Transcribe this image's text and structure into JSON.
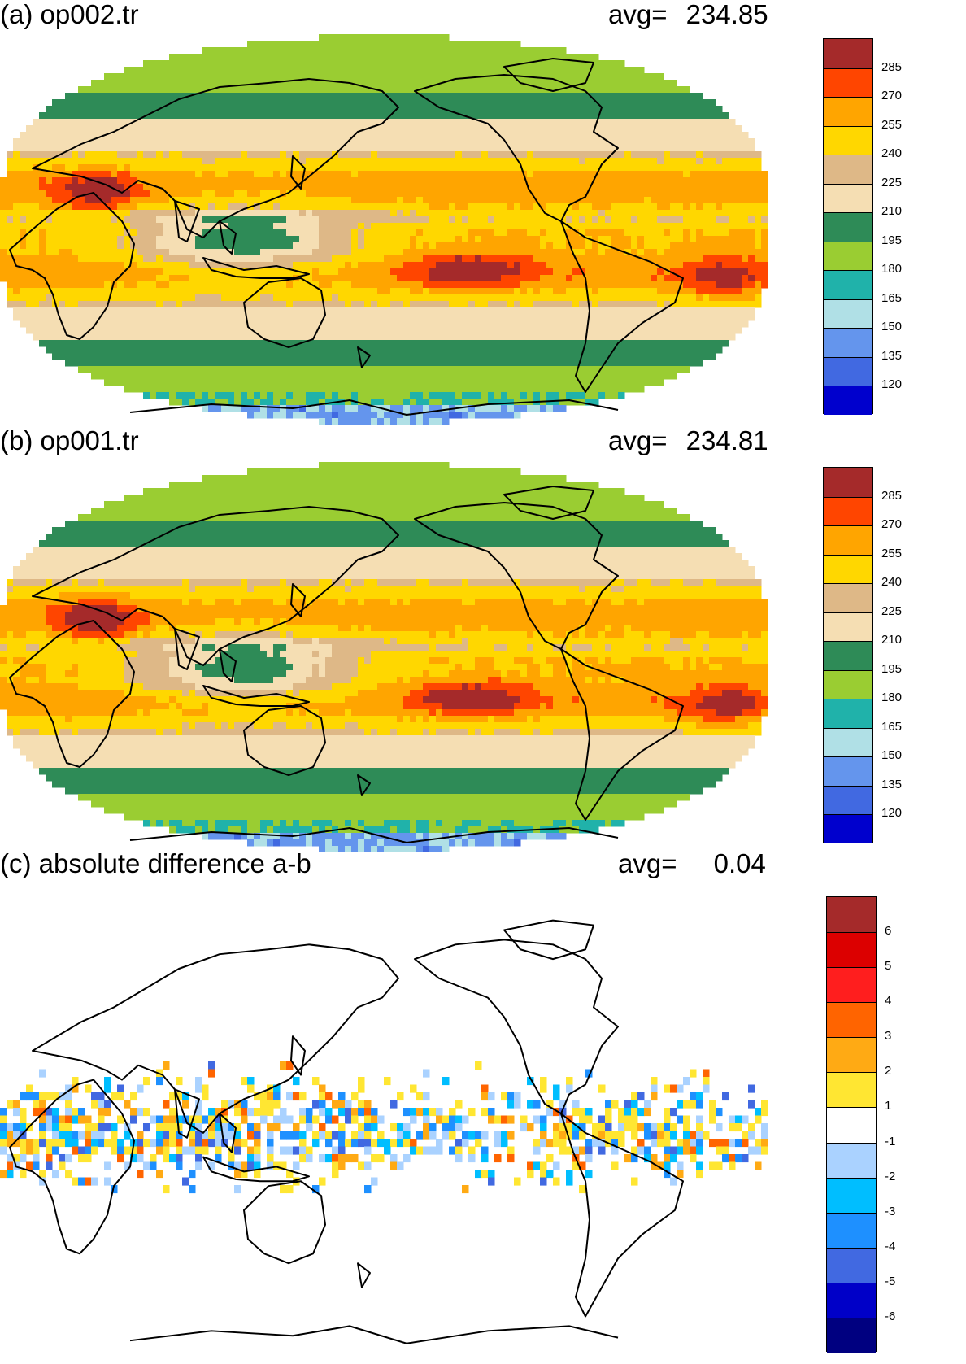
{
  "panels": [
    {
      "id": "a",
      "title": "(a) op002.tr",
      "avg_label": "avg=",
      "avg_value": "234.85",
      "colorbar": {
        "colors": [
          "#a52a2a",
          "#ff4500",
          "#ffa500",
          "#ffd700",
          "#deb887",
          "#f5deb3",
          "#2e8b57",
          "#9acd32",
          "#20b2aa",
          "#b0e0e6",
          "#6495ed",
          "#4169e1",
          "#0000cd"
        ],
        "labels": [
          "285",
          "270",
          "255",
          "240",
          "225",
          "210",
          "195",
          "180",
          "165",
          "150",
          "135",
          "120"
        ]
      }
    },
    {
      "id": "b",
      "title": "(b) op001.tr",
      "avg_label": "avg=",
      "avg_value": "234.81",
      "colorbar": {
        "colors": [
          "#a52a2a",
          "#ff4500",
          "#ffa500",
          "#ffd700",
          "#deb887",
          "#f5deb3",
          "#2e8b57",
          "#9acd32",
          "#20b2aa",
          "#b0e0e6",
          "#6495ed",
          "#4169e1",
          "#0000cd"
        ],
        "labels": [
          "285",
          "270",
          "255",
          "240",
          "225",
          "210",
          "195",
          "180",
          "165",
          "150",
          "135",
          "120"
        ]
      }
    },
    {
      "id": "c",
      "title": "(c) absolute difference a-b",
      "avg_label": "avg=",
      "avg_value": "0.04",
      "colorbar": {
        "colors": [
          "#a52a2a",
          "#dc0000",
          "#ff1e1e",
          "#ff6400",
          "#ffaa14",
          "#ffe632",
          "#ffffff",
          "#aad2ff",
          "#00beff",
          "#1e90ff",
          "#4169e1",
          "#0000c8",
          "#000080"
        ],
        "labels": [
          "6",
          "5",
          "4",
          "3",
          "2",
          "1",
          "-1",
          "-2",
          "-3",
          "-4",
          "-5",
          "-6"
        ]
      }
    }
  ]
}
